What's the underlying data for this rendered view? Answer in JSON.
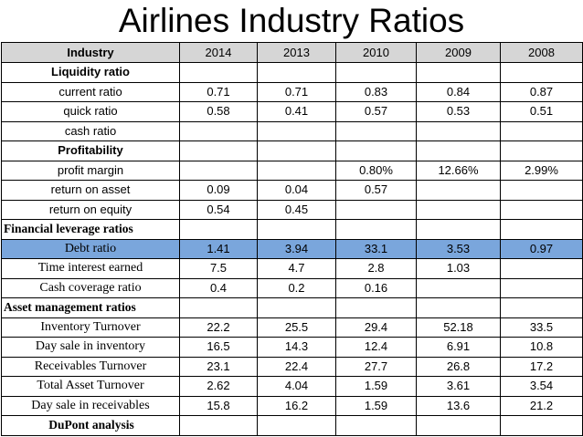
{
  "title": "Airlines Industry Ratios",
  "columns": [
    "Industry",
    "2014",
    "2013",
    "2010",
    "2009",
    "2008"
  ],
  "rows": [
    {
      "label": "Liquidity ratio",
      "values": [
        "",
        "",
        "",
        "",
        ""
      ]
    },
    {
      "label": "current ratio",
      "values": [
        "0.71",
        "0.71",
        "0.83",
        "0.84",
        "0.87"
      ]
    },
    {
      "label": "quick ratio",
      "values": [
        "0.58",
        "0.41",
        "0.57",
        "0.53",
        "0.51"
      ]
    },
    {
      "label": "cash ratio",
      "values": [
        "",
        "",
        "",
        "",
        ""
      ]
    },
    {
      "label": "Profitability",
      "values": [
        "",
        "",
        "",
        "",
        ""
      ]
    },
    {
      "label": "profit margin",
      "values": [
        "",
        "",
        "0.80%",
        "12.66%",
        "2.99%"
      ]
    },
    {
      "label": "return on asset",
      "values": [
        "0.09",
        "0.04",
        "0.57",
        "",
        ""
      ]
    },
    {
      "label": "return on equity",
      "values": [
        "0.54",
        "0.45",
        "",
        "",
        ""
      ]
    },
    {
      "label": "Financial leverage ratios",
      "values": [
        "",
        "",
        "",
        "",
        ""
      ]
    },
    {
      "label": "Debt ratio",
      "values": [
        "1.41",
        "3.94",
        "33.1",
        "3.53",
        "0.97"
      ]
    },
    {
      "label": "Time interest earned",
      "values": [
        "7.5",
        "4.7",
        "2.8",
        "1.03",
        ""
      ]
    },
    {
      "label": "Cash coverage ratio",
      "values": [
        "0.4",
        "0.2",
        "0.16",
        "",
        ""
      ]
    },
    {
      "label": "Asset management ratios",
      "values": [
        "",
        "",
        "",
        "",
        ""
      ]
    },
    {
      "label": "Inventory Turnover",
      "values": [
        "22.2",
        "25.5",
        "29.4",
        "52.18",
        "33.5"
      ]
    },
    {
      "label": "Day sale in inventory",
      "values": [
        "16.5",
        "14.3",
        "12.4",
        "6.91",
        "10.8"
      ]
    },
    {
      "label": "Receivables Turnover",
      "values": [
        "23.1",
        "22.4",
        "27.7",
        "26.8",
        "17.2"
      ]
    },
    {
      "label": "Total Asset Turnover",
      "values": [
        "2.62",
        "4.04",
        "1.59",
        "3.61",
        "3.54"
      ]
    },
    {
      "label": "Day sale in receivables",
      "values": [
        "15.8",
        "16.2",
        "1.59",
        "13.6",
        "21.2"
      ]
    },
    {
      "label": "DuPont analysis",
      "values": [
        "",
        "",
        "",
        "",
        ""
      ]
    }
  ],
  "highlight_color": "#7aa6dc"
}
